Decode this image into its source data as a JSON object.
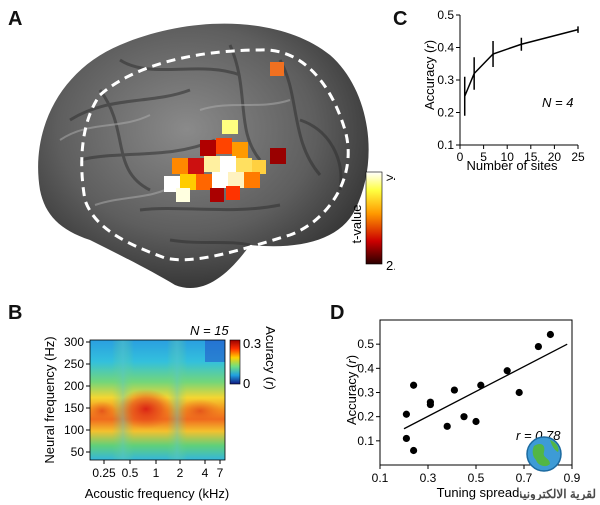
{
  "panels": {
    "a": {
      "letter": "A",
      "colorbar": {
        "label": "t-value",
        "max_label": ">4",
        "min_label": "2.8"
      }
    },
    "b": {
      "letter": "B",
      "n_label": "N = 15",
      "ylabel": "Neural frequency (Hz)",
      "xlabel": "Acoustic frequency (kHz)",
      "yticks": [
        "300",
        "250",
        "200",
        "150",
        "100",
        "50"
      ],
      "xticks": [
        "0.25",
        "0.5",
        "1",
        "2",
        "4",
        "7"
      ],
      "colorbar": {
        "label": "Accuracy (r)",
        "max_label": "0.3",
        "min_label": "0"
      }
    },
    "c": {
      "letter": "C",
      "n_label": "N = 4"
    },
    "d": {
      "letter": "D",
      "r_label": "r = 0.78"
    }
  },
  "watermark": {
    "text": "القرية الالكترونية"
  },
  "chart_data": [
    {
      "panel": "C",
      "type": "line",
      "title": "",
      "xlabel": "Number of sites",
      "ylabel": "Accuracy (r)",
      "xlim": [
        0,
        25
      ],
      "ylim": [
        0.1,
        0.5
      ],
      "xticks": [
        0,
        5,
        10,
        15,
        20,
        25
      ],
      "yticks": [
        0.1,
        0.2,
        0.3,
        0.4,
        0.5
      ],
      "x": [
        1,
        3,
        7,
        13,
        25
      ],
      "y": [
        0.25,
        0.32,
        0.38,
        0.41,
        0.455
      ],
      "error": [
        0.06,
        0.05,
        0.04,
        0.02,
        0.01
      ]
    },
    {
      "panel": "D",
      "type": "scatter",
      "title": "",
      "xlabel": "Tuning spread",
      "ylabel": "Accuracy (r)",
      "xlim": [
        0.1,
        0.9
      ],
      "ylim": [
        0.0,
        0.6
      ],
      "xticks": [
        0.1,
        0.3,
        0.5,
        0.7,
        0.9
      ],
      "yticks": [
        0.1,
        0.2,
        0.3,
        0.4,
        0.5
      ],
      "points": [
        [
          0.21,
          0.21
        ],
        [
          0.21,
          0.11
        ],
        [
          0.24,
          0.33
        ],
        [
          0.24,
          0.06
        ],
        [
          0.31,
          0.25
        ],
        [
          0.31,
          0.26
        ],
        [
          0.38,
          0.16
        ],
        [
          0.41,
          0.31
        ],
        [
          0.45,
          0.2
        ],
        [
          0.52,
          0.33
        ],
        [
          0.63,
          0.39
        ],
        [
          0.68,
          0.3
        ],
        [
          0.76,
          0.49
        ],
        [
          0.81,
          0.54
        ],
        [
          0.5,
          0.18
        ]
      ],
      "fit": {
        "x": [
          0.2,
          0.88
        ],
        "y": [
          0.15,
          0.5
        ]
      }
    }
  ]
}
